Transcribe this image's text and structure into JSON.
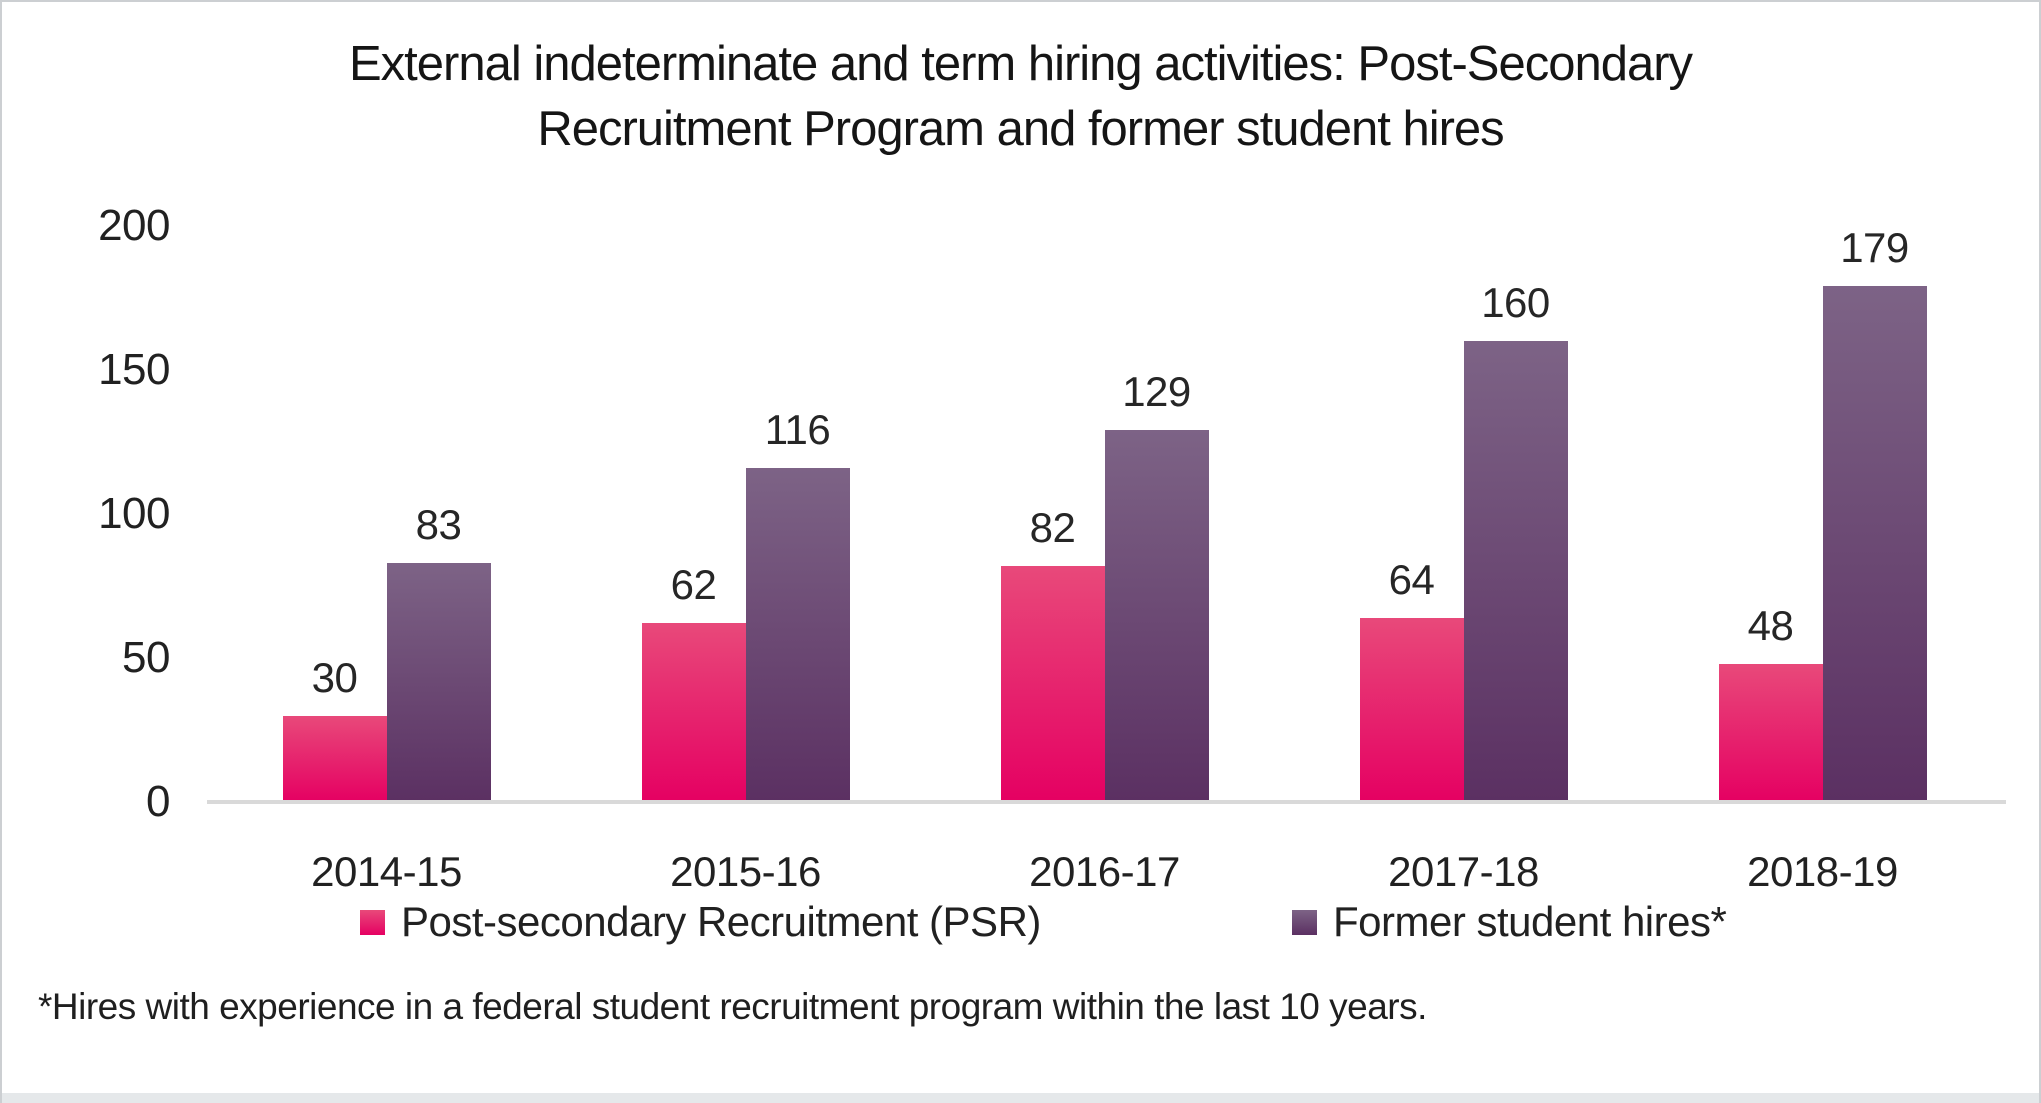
{
  "chart_data": {
    "type": "bar",
    "title": "External indeterminate and term hiring activities: Post-Secondary Recruitment Program and former student hires",
    "title_lines": [
      "External indeterminate and term hiring activities: Post-Secondary",
      "Recruitment Program and former student hires"
    ],
    "categories": [
      "2014-15",
      "2015-16",
      "2016-17",
      "2017-18",
      "2018-19"
    ],
    "series": [
      {
        "name": "Post-secondary Recruitment (PSR)",
        "values": [
          30,
          62,
          82,
          64,
          48
        ],
        "color_top": "#E8497A",
        "color_bottom": "#E50062"
      },
      {
        "name": "Former student hires*",
        "values": [
          83,
          116,
          129,
          160,
          179
        ],
        "color_top": "#7D6386",
        "color_bottom": "#5B3062"
      }
    ],
    "y_ticks": [
      200,
      150,
      100,
      50,
      0
    ],
    "ylim": [
      0,
      200
    ],
    "xlabel": "",
    "ylabel": "",
    "grid": "off",
    "legend_position": "bottom",
    "value_labels": "on",
    "axis_line_color": "#D9D9D9"
  },
  "footnote": "*Hires with experience in a federal student recruitment program within the last 10 years."
}
